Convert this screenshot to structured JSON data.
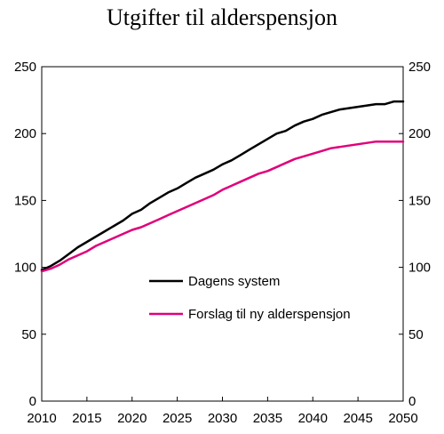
{
  "chart_data": {
    "type": "line",
    "title": "Utgifter til alderspensjon",
    "xlabel": "",
    "ylabel": "",
    "xlim": [
      2010,
      2050
    ],
    "ylim": [
      0,
      250
    ],
    "xticks": [
      "2010",
      "2015",
      "2020",
      "2025",
      "2030",
      "2035",
      "2040",
      "2045",
      "2050"
    ],
    "yticks": [
      "0",
      "50",
      "100",
      "150",
      "200",
      "250"
    ],
    "grid": false,
    "legend_position": "center",
    "x": [
      2010,
      2011,
      2012,
      2013,
      2014,
      2015,
      2016,
      2017,
      2018,
      2019,
      2020,
      2021,
      2022,
      2023,
      2024,
      2025,
      2026,
      2027,
      2028,
      2029,
      2030,
      2031,
      2032,
      2033,
      2034,
      2035,
      2036,
      2037,
      2038,
      2039,
      2040,
      2041,
      2042,
      2043,
      2044,
      2045,
      2046,
      2047,
      2048,
      2049,
      2050
    ],
    "series": [
      {
        "name": "Dagens system",
        "color": "#000000",
        "values": [
          98,
          101,
          105,
          110,
          115,
          119,
          123,
          127,
          131,
          135,
          140,
          143,
          148,
          152,
          156,
          159,
          163,
          167,
          170,
          173,
          177,
          180,
          184,
          188,
          192,
          196,
          200,
          202,
          206,
          209,
          211,
          214,
          216,
          218,
          219,
          220,
          221,
          222,
          222,
          224,
          224
        ]
      },
      {
        "name": "Forslag til ny alderspensjon",
        "color": "#e0007a",
        "values": [
          97,
          99,
          102,
          106,
          109,
          112,
          116,
          119,
          122,
          125,
          128,
          130,
          133,
          136,
          139,
          142,
          145,
          148,
          151,
          154,
          158,
          161,
          164,
          167,
          170,
          172,
          175,
          178,
          181,
          183,
          185,
          187,
          189,
          190,
          191,
          192,
          193,
          194,
          194,
          194,
          194
        ]
      }
    ]
  }
}
